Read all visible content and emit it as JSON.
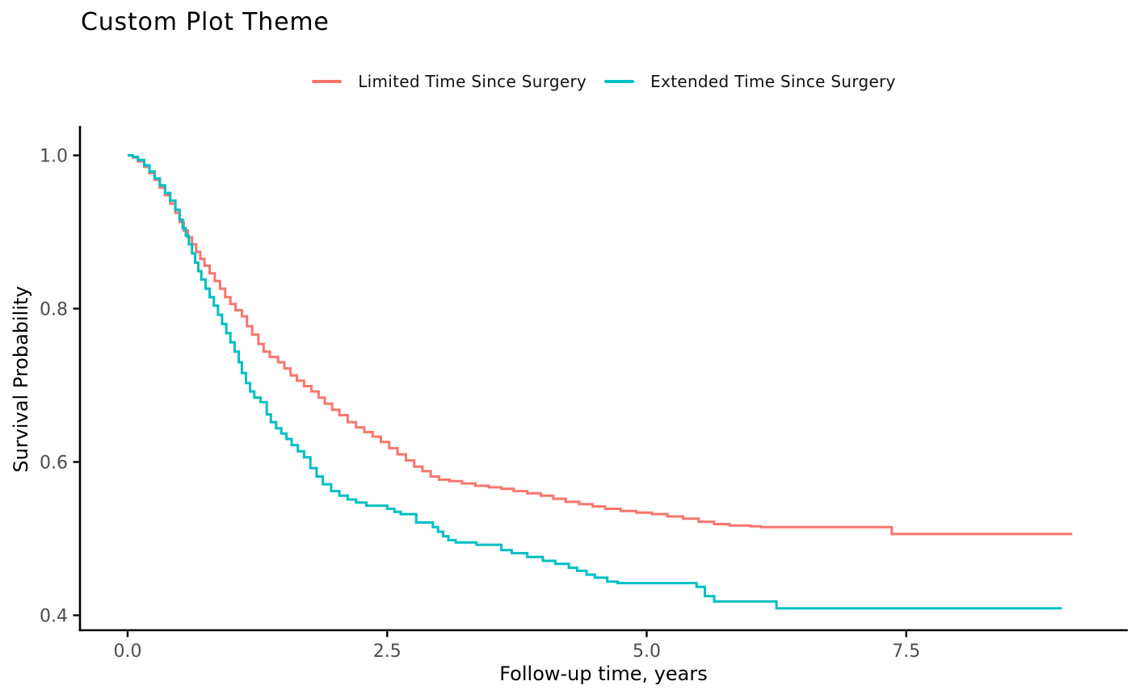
{
  "title": "Custom Plot Theme",
  "colors": {
    "background": "#ffffff",
    "axis_line": "#000000",
    "tick_label": "#4d4d4d",
    "title_text": "#000000",
    "legend_text": "#111111",
    "series_limited": "#F8766D",
    "series_extended": "#00BFC4"
  },
  "legend": {
    "items": [
      {
        "label": "Limited Time Since Surgery",
        "color": "#F8766D"
      },
      {
        "label": "Extended Time Since Surgery",
        "color": "#00BFC4"
      }
    ]
  },
  "axes": {
    "x": {
      "label": "Follow-up time, years",
      "ticks": [
        {
          "value": 0.0,
          "label": "0.0"
        },
        {
          "value": 2.5,
          "label": "2.5"
        },
        {
          "value": 5.0,
          "label": "5.0"
        },
        {
          "value": 7.5,
          "label": "7.5"
        }
      ]
    },
    "y": {
      "label": "Survival Probability",
      "ticks": [
        {
          "value": 1.0,
          "label": "1.0"
        },
        {
          "value": 0.8,
          "label": "0.8"
        },
        {
          "value": 0.6,
          "label": "0.6"
        },
        {
          "value": 0.4,
          "label": "0.4"
        }
      ]
    }
  },
  "chart_data": {
    "type": "line",
    "subtype": "kaplan-meier-step",
    "title": "Custom Plot Theme",
    "xlabel": "Follow-up time, years",
    "ylabel": "Survival Probability",
    "xlim": [
      -0.46,
      9.63
    ],
    "ylim": [
      0.378,
      1.023
    ],
    "xticks": [
      0.0,
      2.5,
      5.0,
      7.5
    ],
    "yticks": [
      0.4,
      0.6,
      0.8,
      1.0
    ],
    "grid": false,
    "legend_position": "top-center",
    "series": [
      {
        "name": "Limited Time Since Surgery",
        "color": "#F8766D",
        "points": [
          [
            0.0,
            1.0
          ],
          [
            0.05,
            0.997
          ],
          [
            0.1,
            0.992
          ],
          [
            0.16,
            0.985
          ],
          [
            0.21,
            0.977
          ],
          [
            0.26,
            0.968
          ],
          [
            0.31,
            0.958
          ],
          [
            0.36,
            0.948
          ],
          [
            0.41,
            0.937
          ],
          [
            0.46,
            0.925
          ],
          [
            0.5,
            0.913
          ],
          [
            0.54,
            0.902
          ],
          [
            0.58,
            0.893
          ],
          [
            0.62,
            0.884
          ],
          [
            0.66,
            0.874
          ],
          [
            0.7,
            0.865
          ],
          [
            0.74,
            0.856
          ],
          [
            0.79,
            0.846
          ],
          [
            0.84,
            0.836
          ],
          [
            0.89,
            0.826
          ],
          [
            0.94,
            0.815
          ],
          [
            0.99,
            0.806
          ],
          [
            1.04,
            0.798
          ],
          [
            1.1,
            0.79
          ],
          [
            1.15,
            0.777
          ],
          [
            1.2,
            0.766
          ],
          [
            1.26,
            0.754
          ],
          [
            1.31,
            0.744
          ],
          [
            1.37,
            0.737
          ],
          [
            1.45,
            0.73
          ],
          [
            1.51,
            0.722
          ],
          [
            1.57,
            0.713
          ],
          [
            1.63,
            0.706
          ],
          [
            1.7,
            0.699
          ],
          [
            1.77,
            0.692
          ],
          [
            1.84,
            0.684
          ],
          [
            1.9,
            0.676
          ],
          [
            1.97,
            0.668
          ],
          [
            2.04,
            0.661
          ],
          [
            2.12,
            0.652
          ],
          [
            2.2,
            0.645
          ],
          [
            2.28,
            0.639
          ],
          [
            2.36,
            0.633
          ],
          [
            2.44,
            0.626
          ],
          [
            2.52,
            0.618
          ],
          [
            2.6,
            0.61
          ],
          [
            2.68,
            0.602
          ],
          [
            2.76,
            0.594
          ],
          [
            2.84,
            0.588
          ],
          [
            2.92,
            0.581
          ],
          [
            3.0,
            0.577
          ],
          [
            3.1,
            0.575
          ],
          [
            3.22,
            0.572
          ],
          [
            3.35,
            0.569
          ],
          [
            3.48,
            0.567
          ],
          [
            3.6,
            0.565
          ],
          [
            3.72,
            0.562
          ],
          [
            3.85,
            0.559
          ],
          [
            3.98,
            0.556
          ],
          [
            4.1,
            0.552
          ],
          [
            4.22,
            0.548
          ],
          [
            4.35,
            0.545
          ],
          [
            4.48,
            0.542
          ],
          [
            4.6,
            0.539
          ],
          [
            4.75,
            0.536
          ],
          [
            4.9,
            0.534
          ],
          [
            5.05,
            0.532
          ],
          [
            5.2,
            0.529
          ],
          [
            5.35,
            0.526
          ],
          [
            5.5,
            0.522
          ],
          [
            5.65,
            0.519
          ],
          [
            5.8,
            0.517
          ],
          [
            6.0,
            0.516
          ],
          [
            6.1,
            0.515
          ],
          [
            7.36,
            0.506
          ],
          [
            9.1,
            0.506
          ]
        ]
      },
      {
        "name": "Extended Time Since Surgery",
        "color": "#00BFC4",
        "points": [
          [
            0.0,
            1.0
          ],
          [
            0.05,
            0.998
          ],
          [
            0.1,
            0.994
          ],
          [
            0.16,
            0.987
          ],
          [
            0.21,
            0.979
          ],
          [
            0.26,
            0.97
          ],
          [
            0.31,
            0.961
          ],
          [
            0.36,
            0.951
          ],
          [
            0.41,
            0.941
          ],
          [
            0.46,
            0.929
          ],
          [
            0.5,
            0.916
          ],
          [
            0.53,
            0.905
          ],
          [
            0.56,
            0.895
          ],
          [
            0.59,
            0.884
          ],
          [
            0.62,
            0.872
          ],
          [
            0.65,
            0.86
          ],
          [
            0.68,
            0.849
          ],
          [
            0.71,
            0.838
          ],
          [
            0.75,
            0.826
          ],
          [
            0.79,
            0.815
          ],
          [
            0.83,
            0.804
          ],
          [
            0.87,
            0.792
          ],
          [
            0.91,
            0.78
          ],
          [
            0.95,
            0.768
          ],
          [
            0.99,
            0.756
          ],
          [
            1.03,
            0.744
          ],
          [
            1.07,
            0.73
          ],
          [
            1.1,
            0.716
          ],
          [
            1.14,
            0.703
          ],
          [
            1.18,
            0.692
          ],
          [
            1.22,
            0.684
          ],
          [
            1.28,
            0.678
          ],
          [
            1.34,
            0.662
          ],
          [
            1.38,
            0.652
          ],
          [
            1.43,
            0.644
          ],
          [
            1.48,
            0.637
          ],
          [
            1.53,
            0.63
          ],
          [
            1.58,
            0.622
          ],
          [
            1.64,
            0.614
          ],
          [
            1.7,
            0.606
          ],
          [
            1.76,
            0.592
          ],
          [
            1.82,
            0.581
          ],
          [
            1.88,
            0.571
          ],
          [
            1.96,
            0.562
          ],
          [
            2.04,
            0.556
          ],
          [
            2.12,
            0.551
          ],
          [
            2.2,
            0.547
          ],
          [
            2.3,
            0.543
          ],
          [
            2.5,
            0.539
          ],
          [
            2.57,
            0.535
          ],
          [
            2.63,
            0.532
          ],
          [
            2.78,
            0.521
          ],
          [
            2.94,
            0.515
          ],
          [
            2.99,
            0.509
          ],
          [
            3.04,
            0.503
          ],
          [
            3.09,
            0.498
          ],
          [
            3.16,
            0.495
          ],
          [
            3.36,
            0.492
          ],
          [
            3.6,
            0.485
          ],
          [
            3.7,
            0.481
          ],
          [
            3.85,
            0.476
          ],
          [
            4.0,
            0.471
          ],
          [
            4.12,
            0.467
          ],
          [
            4.25,
            0.462
          ],
          [
            4.33,
            0.458
          ],
          [
            4.42,
            0.453
          ],
          [
            4.5,
            0.449
          ],
          [
            4.62,
            0.444
          ],
          [
            4.72,
            0.442
          ],
          [
            5.48,
            0.437
          ],
          [
            5.56,
            0.425
          ],
          [
            5.65,
            0.418
          ],
          [
            6.25,
            0.409
          ],
          [
            9.0,
            0.409
          ]
        ]
      }
    ]
  }
}
